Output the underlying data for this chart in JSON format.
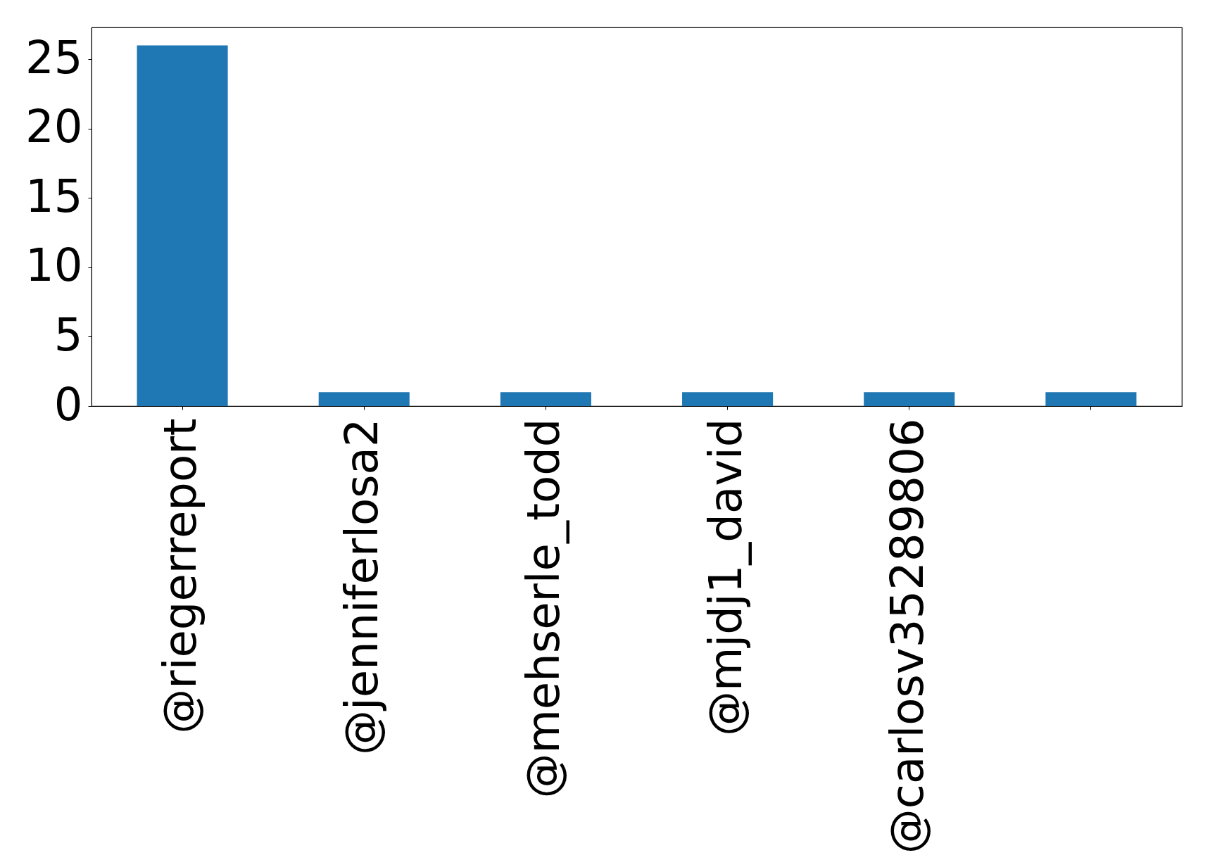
{
  "chart_data": {
    "type": "bar",
    "categories": [
      "@riegerreport",
      "@jenniferlosa2",
      "@mehserle_todd",
      "@mjdj1_david",
      "@carlosv35289806",
      null
    ],
    "values": [
      26,
      1,
      1,
      1,
      1,
      1
    ],
    "color": "#1f77b4",
    "ylim": [
      0,
      27.3
    ],
    "yticks": [
      0,
      5,
      10,
      15,
      20,
      25
    ],
    "grid": false
  }
}
